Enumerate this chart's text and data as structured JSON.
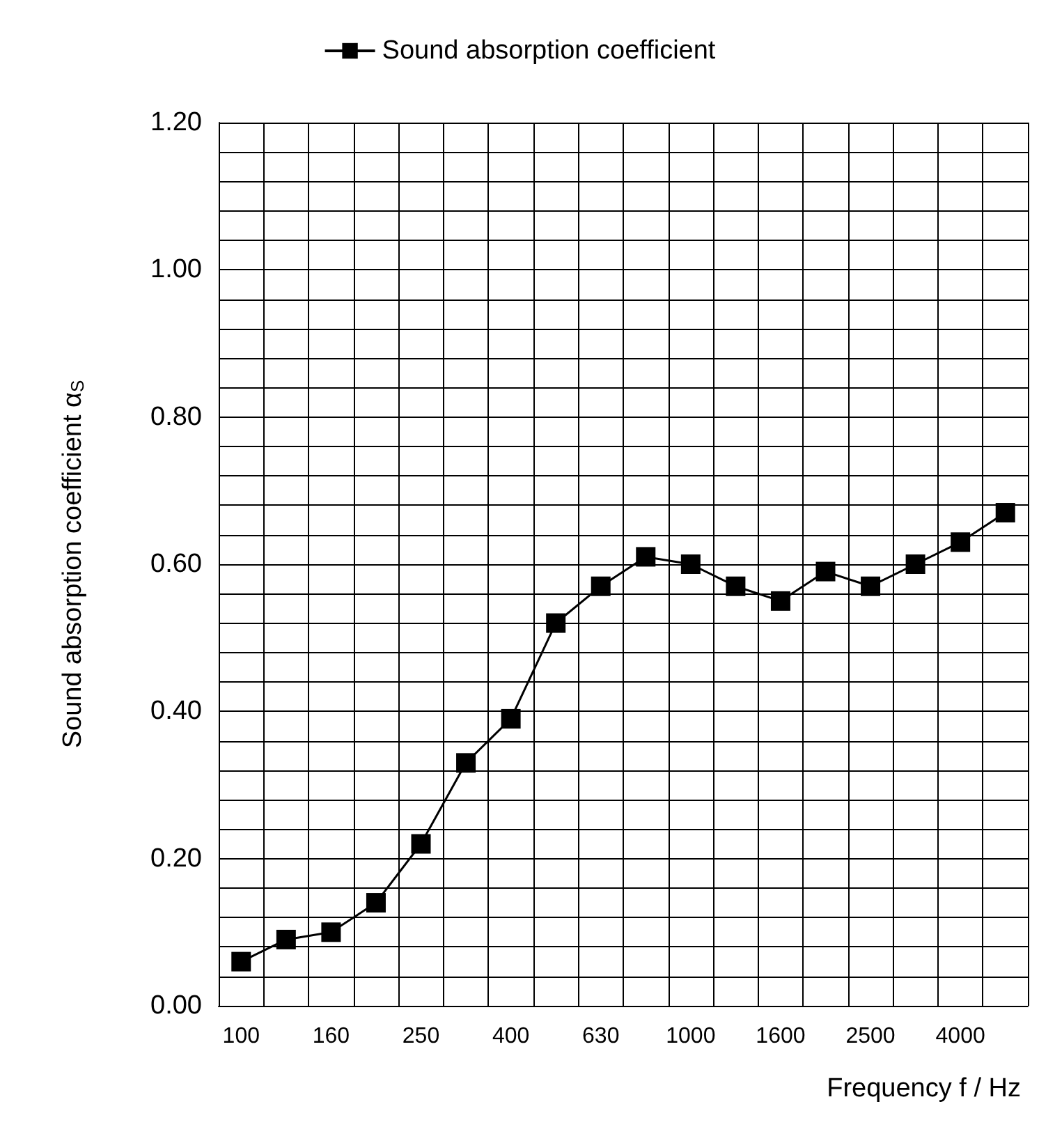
{
  "chart_data": {
    "type": "line",
    "xlabel": "Frequency f / Hz",
    "ylabel": "Sound absorption coefficient α$_{S}$",
    "categories": [
      "100",
      null,
      "160",
      null,
      "250",
      null,
      "400",
      null,
      "630",
      null,
      "1000",
      null,
      "1600",
      null,
      "2500",
      null,
      "4000",
      null
    ],
    "series": [
      {
        "name": "Sound absorption coefficient",
        "color": "#000000",
        "values": [
          0.06,
          0.09,
          0.1,
          0.14,
          0.22,
          0.33,
          0.39,
          0.52,
          0.57,
          0.61,
          0.6,
          0.57,
          0.55,
          0.59,
          0.57,
          0.6,
          0.63,
          0.67
        ]
      }
    ],
    "ylim": [
      0,
      1.2
    ],
    "yticks": [
      {
        "value": 0,
        "label": "0.00"
      },
      {
        "value": 0.04,
        "label": null
      },
      {
        "value": 0.08,
        "label": null
      },
      {
        "value": 0.12,
        "label": null
      },
      {
        "value": 0.16,
        "label": null
      },
      {
        "value": 0.2,
        "label": "0.20"
      },
      {
        "value": 0.24,
        "label": null
      },
      {
        "value": 0.28,
        "label": null
      },
      {
        "value": 0.32,
        "label": null
      },
      {
        "value": 0.36,
        "label": null
      },
      {
        "value": 0.4,
        "label": "0.40"
      },
      {
        "value": 0.44,
        "label": null
      },
      {
        "value": 0.48,
        "label": null
      },
      {
        "value": 0.52,
        "label": null
      },
      {
        "value": 0.56,
        "label": null
      },
      {
        "value": 0.6,
        "label": "0.60"
      },
      {
        "value": 0.64,
        "label": null
      },
      {
        "value": 0.68,
        "label": null
      },
      {
        "value": 0.72,
        "label": null
      },
      {
        "value": 0.76,
        "label": null
      },
      {
        "value": 0.8,
        "label": "0.80"
      },
      {
        "value": 0.84,
        "label": null
      },
      {
        "value": 0.88,
        "label": null
      },
      {
        "value": 0.92,
        "label": null
      },
      {
        "value": 0.96,
        "label": null
      },
      {
        "value": 1.0,
        "label": "1.00"
      },
      {
        "value": 1.04,
        "label": null
      },
      {
        "value": 1.08,
        "label": null
      },
      {
        "value": 1.12,
        "label": null
      },
      {
        "value": 1.16,
        "label": null
      },
      {
        "value": 1.2,
        "label": "1.20"
      }
    ],
    "grid": true,
    "legend": "top",
    "marker": "square",
    "line_style": "solid"
  }
}
